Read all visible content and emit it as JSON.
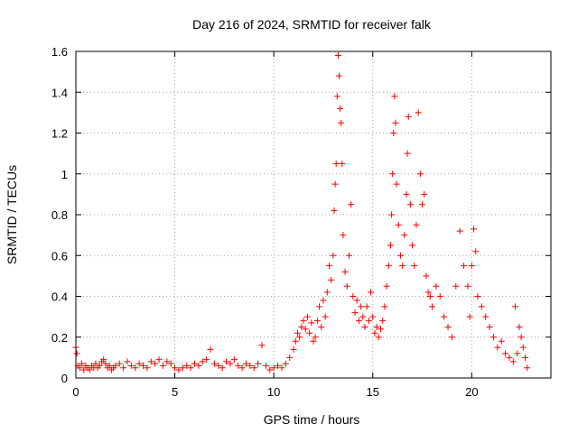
{
  "chart_data": {
    "type": "scatter",
    "title": "Day 216 of 2024, SRMTID for receiver falk",
    "xlabel": "GPS time / hours",
    "ylabel": "SRMTID / TECUs",
    "xlim": [
      0,
      24
    ],
    "ylim": [
      0,
      1.6
    ],
    "xticks": [
      0,
      5,
      10,
      15,
      20
    ],
    "xtick_labels": [
      "0",
      "5",
      "10",
      "15",
      "20"
    ],
    "yticks": [
      0,
      0.2,
      0.4,
      0.6,
      0.8,
      1.0,
      1.2,
      1.4,
      1.6
    ],
    "ytick_labels": [
      "0",
      "0.2",
      "0.4",
      "0.6",
      "0.8",
      "1",
      "1.2",
      "1.4",
      "1.6"
    ],
    "grid": true,
    "marker": "+",
    "color": "#ff0000",
    "series": [
      {
        "name": "SRMTID",
        "points": [
          [
            0.0,
            0.15
          ],
          [
            0.05,
            0.12
          ],
          [
            0.1,
            0.06
          ],
          [
            0.2,
            0.05
          ],
          [
            0.3,
            0.07
          ],
          [
            0.4,
            0.04
          ],
          [
            0.5,
            0.06
          ],
          [
            0.6,
            0.05
          ],
          [
            0.7,
            0.04
          ],
          [
            0.8,
            0.06
          ],
          [
            0.9,
            0.05
          ],
          [
            1.0,
            0.07
          ],
          [
            1.1,
            0.05
          ],
          [
            1.2,
            0.06
          ],
          [
            1.3,
            0.08
          ],
          [
            1.4,
            0.09
          ],
          [
            1.5,
            0.07
          ],
          [
            1.6,
            0.05
          ],
          [
            1.7,
            0.06
          ],
          [
            1.8,
            0.04
          ],
          [
            1.9,
            0.05
          ],
          [
            2.0,
            0.06
          ],
          [
            2.2,
            0.07
          ],
          [
            2.4,
            0.05
          ],
          [
            2.6,
            0.08
          ],
          [
            2.8,
            0.06
          ],
          [
            3.0,
            0.05
          ],
          [
            3.2,
            0.07
          ],
          [
            3.4,
            0.06
          ],
          [
            3.6,
            0.05
          ],
          [
            3.8,
            0.08
          ],
          [
            4.0,
            0.07
          ],
          [
            4.2,
            0.09
          ],
          [
            4.4,
            0.06
          ],
          [
            4.6,
            0.08
          ],
          [
            4.8,
            0.07
          ],
          [
            5.0,
            0.05
          ],
          [
            5.2,
            0.04
          ],
          [
            5.4,
            0.05
          ],
          [
            5.6,
            0.06
          ],
          [
            5.8,
            0.05
          ],
          [
            6.0,
            0.07
          ],
          [
            6.2,
            0.06
          ],
          [
            6.4,
            0.08
          ],
          [
            6.6,
            0.09
          ],
          [
            6.8,
            0.14
          ],
          [
            7.0,
            0.07
          ],
          [
            7.2,
            0.06
          ],
          [
            7.4,
            0.05
          ],
          [
            7.6,
            0.08
          ],
          [
            7.8,
            0.07
          ],
          [
            8.0,
            0.09
          ],
          [
            8.2,
            0.06
          ],
          [
            8.4,
            0.05
          ],
          [
            8.6,
            0.07
          ],
          [
            8.8,
            0.06
          ],
          [
            9.0,
            0.05
          ],
          [
            9.2,
            0.07
          ],
          [
            9.4,
            0.16
          ],
          [
            9.6,
            0.06
          ],
          [
            9.8,
            0.04
          ],
          [
            10.0,
            0.05
          ],
          [
            10.2,
            0.06
          ],
          [
            10.4,
            0.05
          ],
          [
            10.6,
            0.07
          ],
          [
            10.8,
            0.1
          ],
          [
            11.0,
            0.14
          ],
          [
            11.1,
            0.18
          ],
          [
            11.2,
            0.22
          ],
          [
            11.3,
            0.2
          ],
          [
            11.4,
            0.25
          ],
          [
            11.5,
            0.28
          ],
          [
            11.6,
            0.24
          ],
          [
            11.7,
            0.3
          ],
          [
            11.8,
            0.22
          ],
          [
            11.9,
            0.27
          ],
          [
            12.0,
            0.18
          ],
          [
            12.1,
            0.2
          ],
          [
            12.2,
            0.28
          ],
          [
            12.3,
            0.35
          ],
          [
            12.4,
            0.25
          ],
          [
            12.5,
            0.38
          ],
          [
            12.6,
            0.3
          ],
          [
            12.7,
            0.42
          ],
          [
            12.8,
            0.55
          ],
          [
            12.9,
            0.48
          ],
          [
            13.0,
            0.6
          ],
          [
            13.05,
            0.82
          ],
          [
            13.1,
            0.95
          ],
          [
            13.15,
            1.05
          ],
          [
            13.2,
            1.38
          ],
          [
            13.25,
            1.58
          ],
          [
            13.3,
            1.48
          ],
          [
            13.35,
            1.32
          ],
          [
            13.4,
            1.25
          ],
          [
            13.45,
            1.05
          ],
          [
            13.5,
            0.7
          ],
          [
            13.6,
            0.52
          ],
          [
            13.7,
            0.45
          ],
          [
            13.8,
            0.6
          ],
          [
            13.9,
            0.85
          ],
          [
            14.0,
            0.4
          ],
          [
            14.1,
            0.32
          ],
          [
            14.2,
            0.38
          ],
          [
            14.3,
            0.28
          ],
          [
            14.4,
            0.35
          ],
          [
            14.5,
            0.3
          ],
          [
            14.6,
            0.25
          ],
          [
            14.7,
            0.35
          ],
          [
            14.8,
            0.28
          ],
          [
            14.9,
            0.42
          ],
          [
            15.0,
            0.3
          ],
          [
            15.1,
            0.22
          ],
          [
            15.2,
            0.25
          ],
          [
            15.3,
            0.2
          ],
          [
            15.4,
            0.24
          ],
          [
            15.5,
            0.28
          ],
          [
            15.6,
            0.35
          ],
          [
            15.7,
            0.45
          ],
          [
            15.8,
            0.55
          ],
          [
            15.9,
            0.65
          ],
          [
            15.95,
            0.8
          ],
          [
            16.0,
            1.0
          ],
          [
            16.05,
            1.2
          ],
          [
            16.1,
            1.38
          ],
          [
            16.15,
            1.25
          ],
          [
            16.2,
            0.95
          ],
          [
            16.3,
            0.75
          ],
          [
            16.4,
            0.6
          ],
          [
            16.5,
            0.55
          ],
          [
            16.6,
            0.7
          ],
          [
            16.7,
            0.9
          ],
          [
            16.75,
            1.1
          ],
          [
            16.8,
            1.28
          ],
          [
            16.9,
            0.85
          ],
          [
            17.0,
            0.65
          ],
          [
            17.1,
            0.55
          ],
          [
            17.2,
            0.75
          ],
          [
            17.3,
            1.3
          ],
          [
            17.4,
            1.0
          ],
          [
            17.5,
            0.85
          ],
          [
            17.6,
            0.9
          ],
          [
            17.7,
            0.5
          ],
          [
            17.8,
            0.42
          ],
          [
            17.9,
            0.4
          ],
          [
            18.0,
            0.35
          ],
          [
            18.2,
            0.45
          ],
          [
            18.4,
            0.4
          ],
          [
            18.6,
            0.3
          ],
          [
            18.8,
            0.25
          ],
          [
            19.0,
            0.2
          ],
          [
            19.2,
            0.45
          ],
          [
            19.4,
            0.72
          ],
          [
            19.6,
            0.55
          ],
          [
            19.8,
            0.45
          ],
          [
            19.9,
            0.3
          ],
          [
            20.0,
            0.55
          ],
          [
            20.1,
            0.73
          ],
          [
            20.2,
            0.62
          ],
          [
            20.3,
            0.4
          ],
          [
            20.5,
            0.35
          ],
          [
            20.7,
            0.3
          ],
          [
            20.9,
            0.25
          ],
          [
            21.1,
            0.2
          ],
          [
            21.3,
            0.15
          ],
          [
            21.5,
            0.18
          ],
          [
            21.7,
            0.12
          ],
          [
            21.9,
            0.1
          ],
          [
            22.1,
            0.08
          ],
          [
            22.2,
            0.35
          ],
          [
            22.3,
            0.12
          ],
          [
            22.4,
            0.25
          ],
          [
            22.5,
            0.2
          ],
          [
            22.6,
            0.15
          ],
          [
            22.7,
            0.1
          ],
          [
            22.8,
            0.05
          ]
        ]
      }
    ]
  }
}
